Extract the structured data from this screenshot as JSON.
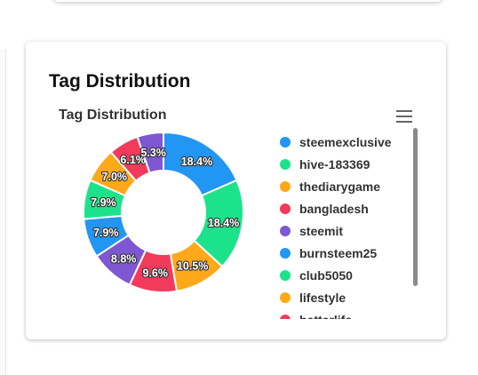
{
  "card": {
    "title": "Tag Distribution"
  },
  "chart_data": {
    "type": "pie",
    "title": "Tag Distribution",
    "donut": true,
    "legend_position": "right",
    "slices": [
      {
        "label": "steemexclusive",
        "value": 18.4,
        "display": "18.4%",
        "color": "#2196F3"
      },
      {
        "label": "hive-183369",
        "value": 18.4,
        "display": "18.4%",
        "color": "#1DE28C"
      },
      {
        "label": "thediarygame",
        "value": 10.5,
        "display": "10.5%",
        "color": "#FFA91A"
      },
      {
        "label": "bangladesh",
        "value": 9.6,
        "display": "9.6%",
        "color": "#F23A5C"
      },
      {
        "label": "steemit",
        "value": 8.8,
        "display": "8.8%",
        "color": "#7E57D2"
      },
      {
        "label": "burnsteem25",
        "value": 7.9,
        "display": "7.9%",
        "color": "#2196F3"
      },
      {
        "label": "club5050",
        "value": 7.9,
        "display": "7.9%",
        "color": "#1DE28C"
      },
      {
        "label": "lifestyle",
        "value": 7.0,
        "display": "7.0%",
        "color": "#FFA91A"
      },
      {
        "label": "betterlife",
        "value": 6.1,
        "display": "6.1%",
        "color": "#F23A5C"
      },
      {
        "label": "",
        "value": 5.3,
        "display": "5.3%",
        "color": "#7E57D2"
      }
    ]
  },
  "icons": {
    "menu": "hamburger-menu-icon"
  }
}
